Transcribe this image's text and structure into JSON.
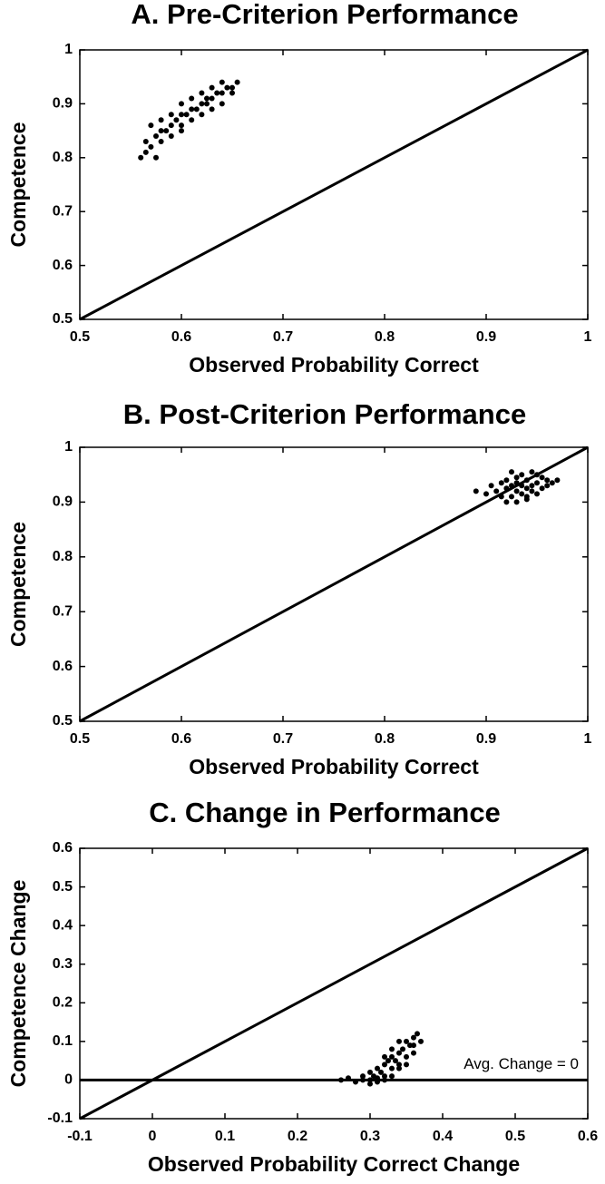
{
  "chart_data": [
    {
      "type": "scatter",
      "title": "A. Pre-Criterion Performance",
      "x_label": "Observed Probability Correct",
      "y_label": "Competence",
      "xlim": [
        0.5,
        1
      ],
      "ylim": [
        0.5,
        1
      ],
      "xticks": [
        0.5,
        0.6,
        0.7,
        0.8,
        0.9,
        1
      ],
      "yticks": [
        0.5,
        0.6,
        0.7,
        0.8,
        0.9,
        1
      ],
      "color": "#000000",
      "x": [
        0.56,
        0.565,
        0.57,
        0.575,
        0.58,
        0.585,
        0.59,
        0.595,
        0.6,
        0.605,
        0.61,
        0.615,
        0.62,
        0.625,
        0.63,
        0.635,
        0.64,
        0.645,
        0.65,
        0.655,
        0.58,
        0.59,
        0.6,
        0.61,
        0.62,
        0.63,
        0.64,
        0.57,
        0.58,
        0.59,
        0.6,
        0.61,
        0.62,
        0.63,
        0.64,
        0.565,
        0.575,
        0.6,
        0.625,
        0.65
      ],
      "values": [
        0.8,
        0.81,
        0.82,
        0.84,
        0.85,
        0.85,
        0.86,
        0.87,
        0.88,
        0.88,
        0.89,
        0.89,
        0.9,
        0.91,
        0.91,
        0.92,
        0.92,
        0.93,
        0.93,
        0.94,
        0.83,
        0.84,
        0.86,
        0.87,
        0.88,
        0.89,
        0.9,
        0.86,
        0.87,
        0.88,
        0.9,
        0.91,
        0.92,
        0.93,
        0.94,
        0.83,
        0.8,
        0.85,
        0.9,
        0.92
      ],
      "reference_lines": [
        {
          "x": [
            0.5,
            1
          ],
          "y": [
            0.5,
            1
          ]
        }
      ]
    },
    {
      "type": "scatter",
      "title": "B. Post-Criterion Performance",
      "x_label": "Observed Probability Correct",
      "y_label": "Competence",
      "xlim": [
        0.5,
        1
      ],
      "ylim": [
        0.5,
        1
      ],
      "xticks": [
        0.5,
        0.6,
        0.7,
        0.8,
        0.9,
        1
      ],
      "yticks": [
        0.5,
        0.6,
        0.7,
        0.8,
        0.9,
        1
      ],
      "color": "#000000",
      "x": [
        0.89,
        0.9,
        0.905,
        0.91,
        0.915,
        0.915,
        0.92,
        0.92,
        0.925,
        0.925,
        0.93,
        0.93,
        0.93,
        0.935,
        0.935,
        0.935,
        0.94,
        0.94,
        0.94,
        0.945,
        0.945,
        0.95,
        0.95,
        0.955,
        0.955,
        0.96,
        0.96,
        0.965,
        0.97,
        0.92,
        0.93,
        0.94,
        0.95,
        0.925,
        0.945
      ],
      "values": [
        0.92,
        0.915,
        0.93,
        0.92,
        0.91,
        0.935,
        0.925,
        0.94,
        0.91,
        0.93,
        0.9,
        0.92,
        0.945,
        0.915,
        0.93,
        0.95,
        0.905,
        0.925,
        0.94,
        0.92,
        0.955,
        0.915,
        0.935,
        0.925,
        0.945,
        0.93,
        0.94,
        0.935,
        0.94,
        0.9,
        0.935,
        0.91,
        0.95,
        0.955,
        0.93
      ],
      "reference_lines": [
        {
          "x": [
            0.5,
            1
          ],
          "y": [
            0.5,
            1
          ]
        }
      ]
    },
    {
      "type": "scatter",
      "title": "C. Change in Performance",
      "x_label": "Observed Probability Correct Change",
      "y_label": "Competence Change",
      "xlim": [
        -0.1,
        0.6
      ],
      "ylim": [
        -0.1,
        0.6
      ],
      "xticks": [
        -0.1,
        0,
        0.1,
        0.2,
        0.3,
        0.4,
        0.5,
        0.6
      ],
      "yticks": [
        -0.1,
        0,
        0.1,
        0.2,
        0.3,
        0.4,
        0.5,
        0.6
      ],
      "color": "#000000",
      "x": [
        0.26,
        0.27,
        0.28,
        0.29,
        0.29,
        0.3,
        0.3,
        0.305,
        0.31,
        0.31,
        0.315,
        0.32,
        0.32,
        0.325,
        0.33,
        0.33,
        0.335,
        0.34,
        0.34,
        0.345,
        0.35,
        0.35,
        0.355,
        0.36,
        0.36,
        0.365,
        0.37,
        0.3,
        0.31,
        0.32,
        0.33,
        0.34,
        0.35,
        0.36,
        0.32,
        0.33,
        0.34
      ],
      "values": [
        0,
        0.005,
        -0.005,
        0,
        0.01,
        0,
        0.02,
        0.01,
        0.03,
        -0.005,
        0.02,
        0.04,
        0.01,
        0.05,
        0.03,
        0.06,
        0.05,
        0.07,
        0.04,
        0.08,
        0.06,
        0.1,
        0.09,
        0.11,
        0.07,
        0.12,
        0.1,
        -0.01,
        0.005,
        0.0,
        0.01,
        0.03,
        0.04,
        0.09,
        0.06,
        0.08,
        0.1
      ],
      "reference_lines": [
        {
          "x": [
            -0.1,
            0.6
          ],
          "y": [
            -0.1,
            0.6
          ]
        },
        {
          "x": [
            -0.1,
            0.6
          ],
          "y": [
            0,
            0
          ]
        }
      ],
      "annotation": "Avg. Change = 0"
    }
  ]
}
